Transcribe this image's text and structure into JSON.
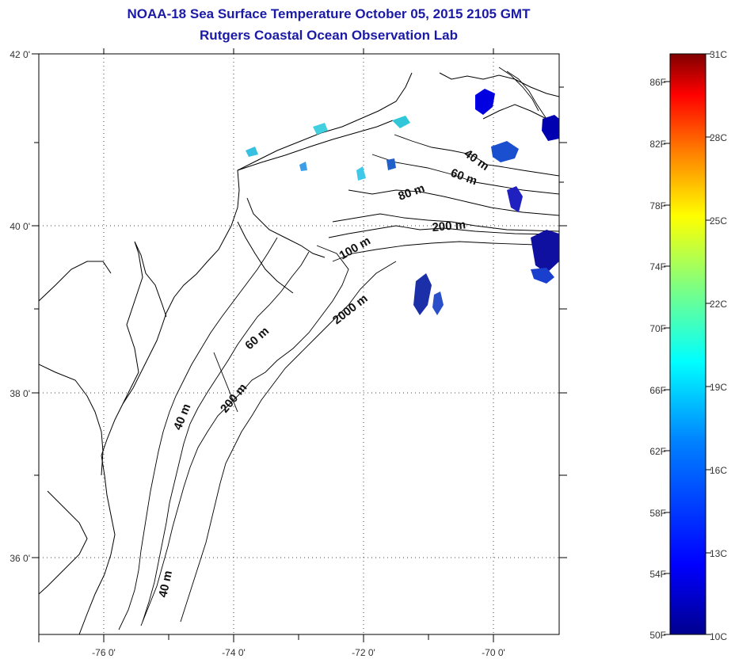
{
  "header": {
    "title_line1": "NOAA-18 Sea Surface Temperature October 05, 2015 2105 GMT",
    "title_line2": "Rutgers Coastal Ocean Observation Lab"
  },
  "map": {
    "lat_labels": [
      "42 0'",
      "40 0'",
      "38 0'",
      "36 0'"
    ],
    "lon_labels": [
      "-76 0'",
      "-74 0'",
      "-72 0'",
      "-70 0'"
    ],
    "depth_labels": [
      "40 m",
      "60 m",
      "80 m",
      "200 m",
      "100 m",
      "2000 m",
      "60 m",
      "200 m",
      "40 m",
      "40 m"
    ]
  },
  "colorbar": {
    "fahrenheit_labels": [
      "86F",
      "82F",
      "78F",
      "74F",
      "70F",
      "66F",
      "62F",
      "58F",
      "54F",
      "50F"
    ],
    "celsius_labels": [
      "31C",
      "28C",
      "25C",
      "22C",
      "19C",
      "16C",
      "13C",
      "10C"
    ],
    "colors": [
      "#800000",
      "#ff0000",
      "#ff8000",
      "#ffff00",
      "#80ff80",
      "#00ffff",
      "#0080ff",
      "#0000ff",
      "#00008f"
    ]
  }
}
